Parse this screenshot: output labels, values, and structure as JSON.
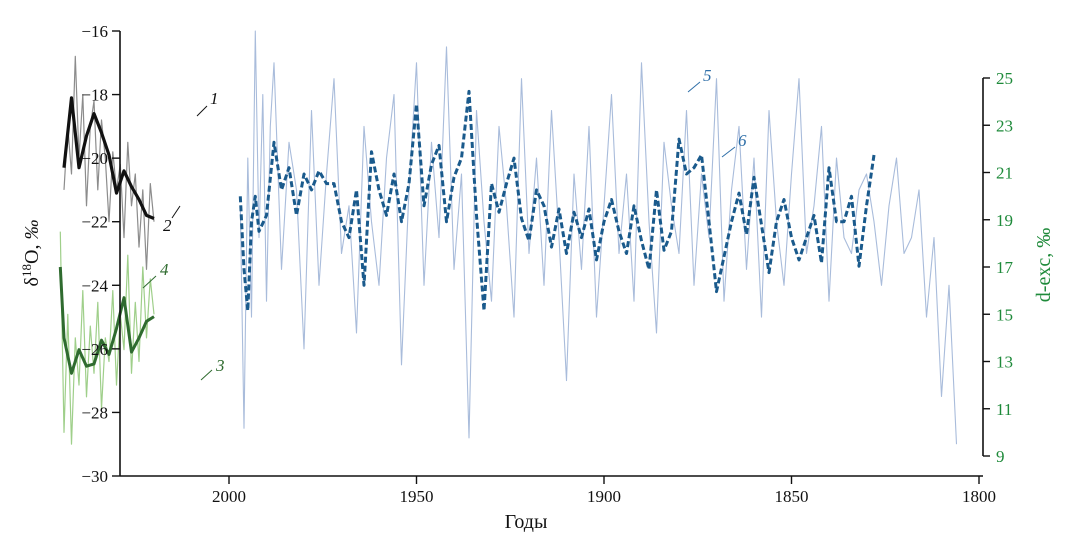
{
  "chart_data": {
    "type": "line",
    "xlabel": "Годы",
    "xlim": [
      2045,
      1800
    ],
    "x_ticks": [
      2000,
      1950,
      1900,
      1850,
      1800
    ],
    "left_axis": {
      "label": "δ18O, ‰",
      "ylim": [
        -30,
        -16
      ],
      "ticks": [
        -30,
        -28,
        -26,
        -24,
        -22,
        -20,
        -18,
        -16
      ]
    },
    "right_axis": {
      "label": "d-exc, ‰",
      "ylim": [
        9,
        25
      ],
      "ticks": [
        9,
        11,
        13,
        15,
        17,
        19,
        21,
        23,
        25
      ]
    },
    "colors": {
      "series_1": "#8c8c8c",
      "series_2": "#111111",
      "series_3": "#9fcf8a",
      "series_4": "#2f6b2f",
      "series_5": "#a9bcdb",
      "series_6": "#1a5a8c",
      "right_axis": "#1e8a3a",
      "label_blue": "#2f6fa8"
    },
    "series": [
      {
        "name": "1",
        "axis": "left",
        "x": [
          2044,
          2043,
          2042,
          2041,
          2040,
          2039,
          2038,
          2037,
          2036,
          2035,
          2034,
          2033,
          2032,
          2031,
          2030,
          2029,
          2028,
          2027,
          2026,
          2025,
          2024,
          2023,
          2022,
          2021,
          2020
        ],
        "y": [
          -21.0,
          -19.0,
          -20.5,
          -16.8,
          -20.0,
          -18.0,
          -21.5,
          -19.0,
          -18.2,
          -21.0,
          -18.8,
          -20.0,
          -22.0,
          -19.8,
          -21.0,
          -20.2,
          -22.5,
          -19.5,
          -21.5,
          -20.5,
          -22.8,
          -21.0,
          -23.5,
          -20.8,
          -22.0
        ]
      },
      {
        "name": "2",
        "axis": "left",
        "x": [
          2044,
          2042,
          2040,
          2038,
          2036,
          2034,
          2032,
          2030,
          2028,
          2026,
          2024,
          2022,
          2020
        ],
        "y": [
          -20.3,
          -18.1,
          -20.3,
          -19.3,
          -18.6,
          -19.2,
          -19.9,
          -21.1,
          -20.4,
          -20.9,
          -21.3,
          -21.8,
          -21.9
        ]
      },
      {
        "name": "3",
        "axis": "right",
        "x": [
          2045,
          2044,
          2043,
          2042,
          2041,
          2040,
          2039,
          2038,
          2037,
          2036,
          2035,
          2034,
          2033,
          2032,
          2031,
          2030,
          2029,
          2028,
          2027,
          2026,
          2025,
          2024,
          2023,
          2022,
          2021,
          2020
        ],
        "y": [
          18.5,
          10.0,
          15.0,
          9.5,
          14.0,
          12.0,
          16.0,
          11.5,
          14.5,
          12.5,
          15.5,
          11.0,
          14.0,
          13.0,
          16.0,
          12.0,
          15.0,
          13.5,
          17.5,
          12.5,
          15.5,
          13.0,
          17.0,
          14.0,
          16.5,
          15.0
        ]
      },
      {
        "name": "4",
        "axis": "right",
        "x": [
          2045,
          2044,
          2042,
          2040,
          2038,
          2036,
          2034,
          2032,
          2030,
          2028,
          2026,
          2024,
          2022,
          2020
        ],
        "y": [
          17.0,
          14.0,
          12.5,
          13.5,
          12.8,
          12.9,
          13.9,
          13.3,
          14.4,
          15.7,
          13.4,
          14.0,
          14.7,
          14.9
        ]
      },
      {
        "name": "5",
        "axis": "left",
        "x": [
          1997,
          1996,
          1995,
          1994,
          1993,
          1992,
          1991,
          1990,
          1989,
          1988,
          1986,
          1984,
          1982,
          1980,
          1978,
          1976,
          1974,
          1972,
          1970,
          1968,
          1966,
          1964,
          1962,
          1960,
          1958,
          1956,
          1954,
          1952,
          1950,
          1948,
          1946,
          1944,
          1942,
          1940,
          1938,
          1936,
          1934,
          1932,
          1930,
          1928,
          1926,
          1924,
          1922,
          1920,
          1918,
          1916,
          1914,
          1912,
          1910,
          1908,
          1906,
          1904,
          1902,
          1900,
          1898,
          1896,
          1894,
          1892,
          1890,
          1888,
          1886,
          1884,
          1882,
          1880,
          1878,
          1876,
          1874,
          1872,
          1870,
          1868,
          1866,
          1864,
          1862,
          1860,
          1858,
          1856,
          1854,
          1852,
          1850,
          1848,
          1846,
          1844,
          1842,
          1840,
          1838,
          1836,
          1834,
          1832,
          1830,
          1828,
          1826,
          1824,
          1822,
          1820,
          1818,
          1816,
          1814,
          1812,
          1810,
          1808,
          1806
        ],
        "y": [
          -21.5,
          -28.5,
          -20.0,
          -25.0,
          -16.0,
          -22.5,
          -18.0,
          -24.5,
          -19.0,
          -17.0,
          -23.5,
          -19.5,
          -21.0,
          -26.0,
          -18.5,
          -24.0,
          -20.5,
          -17.5,
          -23.0,
          -21.5,
          -25.5,
          -19.0,
          -22.0,
          -24.0,
          -20.0,
          -18.0,
          -26.5,
          -21.0,
          -17.0,
          -24.0,
          -19.5,
          -22.5,
          -16.5,
          -23.5,
          -20.5,
          -28.8,
          -18.5,
          -22.0,
          -24.5,
          -19.0,
          -21.5,
          -25.0,
          -17.5,
          -23.0,
          -20.0,
          -24.0,
          -18.5,
          -22.5,
          -27.0,
          -20.5,
          -23.5,
          -19.0,
          -25.0,
          -21.5,
          -18.0,
          -23.0,
          -20.5,
          -24.5,
          -17.0,
          -22.0,
          -25.5,
          -19.5,
          -21.5,
          -23.0,
          -18.5,
          -24.0,
          -20.5,
          -22.5,
          -17.5,
          -24.5,
          -21.0,
          -19.0,
          -23.5,
          -20.0,
          -25.0,
          -18.5,
          -22.0,
          -24.0,
          -20.5,
          -17.5,
          -23.0,
          -21.5,
          -19.0,
          -24.5,
          -20.0,
          -22.5,
          -23.0,
          -21.0,
          -20.5,
          -22.0,
          -24.0,
          -21.5,
          -20.0,
          -23.0,
          -22.5,
          -21.0,
          -25.0,
          -22.5,
          -27.5,
          -24.0,
          -29.0
        ]
      },
      {
        "name": "6",
        "axis": "left",
        "x": [
          1997,
          1996,
          1995,
          1994,
          1993,
          1992,
          1990,
          1988,
          1986,
          1984,
          1982,
          1980,
          1978,
          1976,
          1974,
          1972,
          1970,
          1968,
          1966,
          1964,
          1962,
          1960,
          1958,
          1956,
          1954,
          1952,
          1950,
          1948,
          1946,
          1944,
          1942,
          1940,
          1938,
          1936,
          1934,
          1932,
          1930,
          1928,
          1926,
          1924,
          1922,
          1920,
          1918,
          1916,
          1914,
          1912,
          1910,
          1908,
          1906,
          1904,
          1902,
          1900,
          1898,
          1896,
          1894,
          1892,
          1890,
          1888,
          1886,
          1884,
          1882,
          1880,
          1878,
          1876,
          1874,
          1872,
          1870,
          1868,
          1866,
          1864,
          1862,
          1860,
          1858,
          1856,
          1854,
          1852,
          1850,
          1848,
          1846,
          1844,
          1842,
          1840,
          1838,
          1836,
          1834,
          1832,
          1830,
          1828
        ],
        "y": [
          -21.2,
          -23.5,
          -24.8,
          -22.0,
          -21.2,
          -22.3,
          -21.8,
          -19.5,
          -21.0,
          -20.3,
          -21.8,
          -20.5,
          -21.0,
          -20.4,
          -20.8,
          -20.8,
          -22.0,
          -22.5,
          -21.0,
          -24.0,
          -19.8,
          -21.0,
          -21.8,
          -20.5,
          -22.0,
          -20.8,
          -18.3,
          -21.5,
          -20.2,
          -19.6,
          -22.0,
          -20.6,
          -20.0,
          -17.9,
          -21.8,
          -24.8,
          -20.8,
          -21.7,
          -20.8,
          -20.0,
          -21.9,
          -22.6,
          -21.0,
          -21.5,
          -22.8,
          -21.6,
          -23.0,
          -21.7,
          -22.5,
          -21.6,
          -23.2,
          -22.0,
          -21.3,
          -22.3,
          -23.0,
          -21.5,
          -22.6,
          -23.5,
          -21.0,
          -22.9,
          -22.3,
          -19.4,
          -20.5,
          -20.3,
          -19.9,
          -22.0,
          -24.2,
          -23.1,
          -22.0,
          -21.1,
          -22.4,
          -20.6,
          -22.1,
          -23.6,
          -22.0,
          -21.3,
          -22.5,
          -23.2,
          -22.5,
          -21.8,
          -23.3,
          -20.3,
          -22.0,
          -22.0,
          -21.2,
          -23.4,
          -21.5,
          -19.9
        ]
      }
    ],
    "annotations": [
      {
        "text": "1",
        "series": "1"
      },
      {
        "text": "2",
        "series": "2"
      },
      {
        "text": "3",
        "series": "3"
      },
      {
        "text": "4",
        "series": "4"
      },
      {
        "text": "5",
        "series": "5"
      },
      {
        "text": "6",
        "series": "6"
      }
    ]
  }
}
